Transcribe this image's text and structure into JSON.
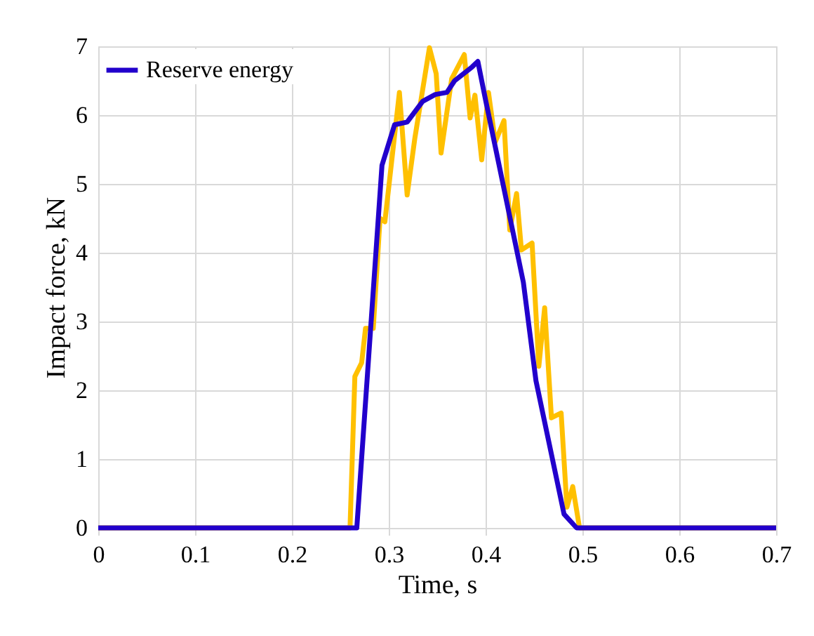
{
  "chart_data": {
    "type": "line",
    "xlabel": "Time, s",
    "ylabel": "Impact force, kN",
    "xlim": [
      0,
      0.7
    ],
    "ylim": [
      0,
      7
    ],
    "xticks": [
      0,
      0.1,
      0.2,
      0.3,
      0.4,
      0.5,
      0.6,
      0.7
    ],
    "yticks": [
      0,
      1,
      2,
      3,
      4,
      5,
      6,
      7
    ],
    "grid": true,
    "legend": "top left",
    "marker": "none",
    "line_style": "solid",
    "series": [
      {
        "color": "#ffc000",
        "x": [
          0,
          0.26,
          0.265,
          0.272,
          0.276,
          0.284,
          0.291,
          0.296,
          0.311,
          0.319,
          0.327,
          0.342,
          0.349,
          0.354,
          0.365,
          0.378,
          0.384,
          0.389,
          0.396,
          0.403,
          0.41,
          0.419,
          0.425,
          0.432,
          0.437,
          0.448,
          0.455,
          0.461,
          0.468,
          0.478,
          0.484,
          0.49,
          0.497,
          0.7
        ],
        "values": [
          0,
          0,
          2.2,
          2.4,
          2.9,
          2.9,
          4.5,
          4.45,
          6.33,
          4.84,
          5.67,
          6.98,
          6.6,
          5.45,
          6.53,
          6.88,
          5.96,
          6.29,
          5.35,
          6.33,
          5.61,
          5.92,
          4.33,
          4.86,
          4.04,
          4.14,
          2.35,
          3.2,
          1.6,
          1.67,
          0.3,
          0.6,
          0,
          0
        ]
      },
      {
        "name": "Reserve energy",
        "color": "#2200cc",
        "x": [
          0,
          0.267,
          0.293,
          0.306,
          0.319,
          0.335,
          0.348,
          0.36,
          0.368,
          0.386,
          0.392,
          0.4,
          0.439,
          0.452,
          0.481,
          0.494,
          0.7
        ],
        "values": [
          0,
          0,
          5.27,
          5.86,
          5.9,
          6.2,
          6.3,
          6.33,
          6.5,
          6.7,
          6.78,
          6.22,
          3.57,
          2.14,
          0.2,
          0,
          0
        ]
      }
    ]
  }
}
